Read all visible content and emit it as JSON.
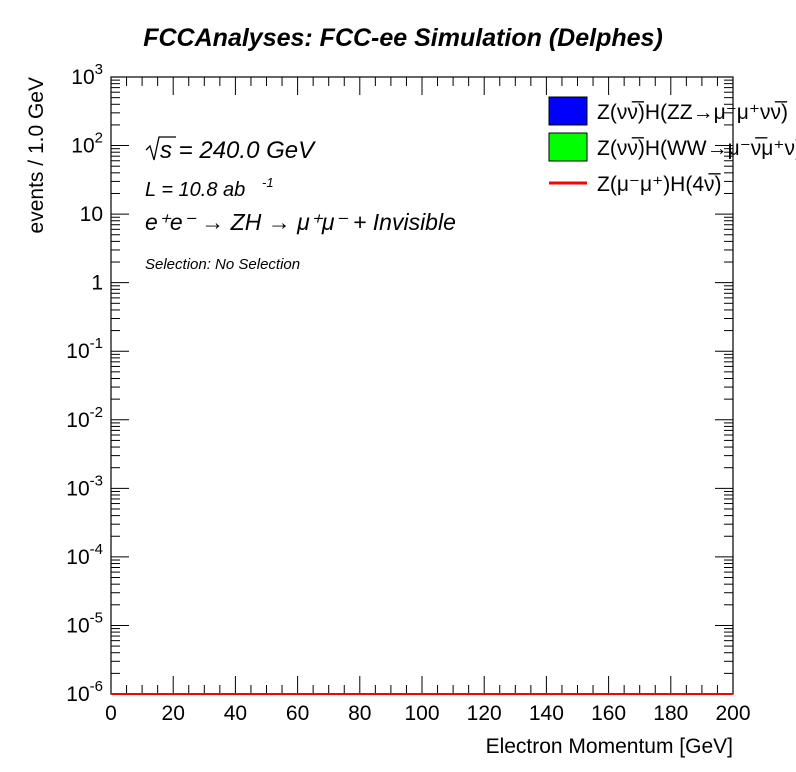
{
  "chart_data": {
    "type": "line",
    "title": "FCCAnalyses: FCC-ee Simulation (Delphes)",
    "xlabel": "Electron Momentum [GeV]",
    "ylabel": "events / 1.0 GeV",
    "xlim": [
      0,
      200
    ],
    "ylim": [
      1e-06,
      1000
    ],
    "yscale": "log",
    "x_ticks": [
      "0",
      "20",
      "40",
      "60",
      "80",
      "100",
      "120",
      "140",
      "160",
      "180",
      "200"
    ],
    "y_ticks": [
      {
        "base": "10",
        "exp": "-6"
      },
      {
        "base": "10",
        "exp": "-5"
      },
      {
        "base": "10",
        "exp": "-4"
      },
      {
        "base": "10",
        "exp": "-3"
      },
      {
        "base": "10",
        "exp": "-2"
      },
      {
        "base": "10",
        "exp": "-1"
      },
      {
        "base": "1",
        "exp": ""
      },
      {
        "base": "10",
        "exp": ""
      },
      {
        "base": "10",
        "exp": "2"
      },
      {
        "base": "10",
        "exp": "3"
      }
    ],
    "annotations": {
      "sqrt_s": "s = 240.0 GeV",
      "lumi": "L = 10.8 ab",
      "lumi_exp": "-1",
      "process": "e⁺e⁻ → ZH → μ⁺μ⁻ + Invisible",
      "selection": "Selection: No Selection"
    },
    "legend_position": "top-right",
    "series": [
      {
        "name": "Z(νν̅)H(ZZ→μ⁻μ⁺νν̅)",
        "style": "filled",
        "color": "#0000ff",
        "x": [
          0,
          200
        ],
        "y": [
          1e-06,
          1e-06
        ]
      },
      {
        "name": "Z(νν̅)H(WW→μ⁻ν̅μ⁺ν)",
        "style": "filled",
        "color": "#00ff00",
        "x": [
          0,
          200
        ],
        "y": [
          1e-06,
          1e-06
        ]
      },
      {
        "name": "Z(μ⁻μ⁺)H(4ν̅)",
        "style": "line",
        "color": "#ff0000",
        "x": [
          0,
          200
        ],
        "y": [
          1e-06,
          1e-06
        ]
      }
    ]
  }
}
